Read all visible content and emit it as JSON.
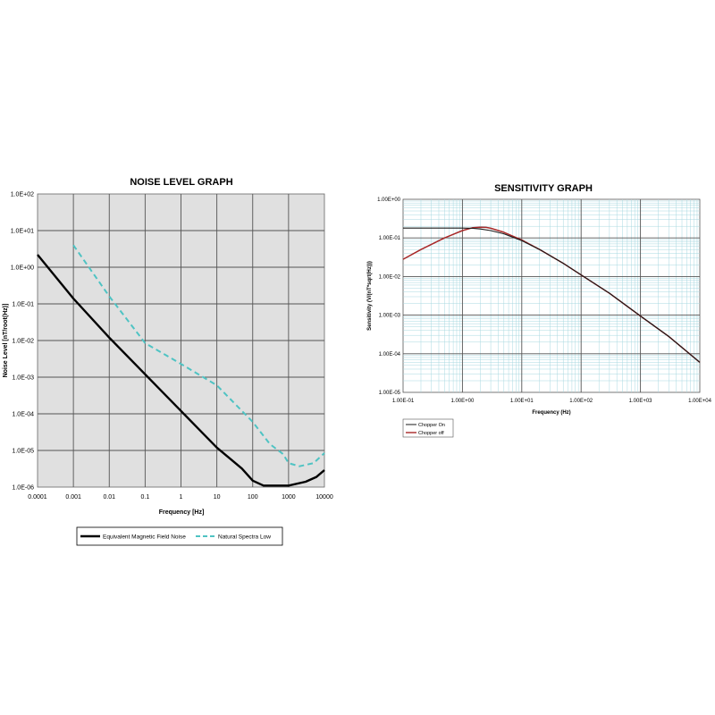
{
  "chart_data": [
    {
      "type": "line",
      "title": "NOISE LEVEL GRAPH",
      "xlabel": "Frequency [Hz]",
      "ylabel": "Noise Level [nT/root(Hz)]",
      "x_scale": "log",
      "y_scale": "log",
      "xlim": [
        0.0001,
        10000
      ],
      "ylim": [
        1e-06,
        100
      ],
      "grid": true,
      "legend_position": "bottom",
      "x_ticks": [
        "0.0001",
        "0.001",
        "0.01",
        "0.1",
        "1",
        "10",
        "100",
        "1000",
        "10000"
      ],
      "y_ticks": [
        "1.0E-06",
        "1.0E-05",
        "1.0E-04",
        "1.0E-03",
        "1.0E-02",
        "1.0E-01",
        "1.0E+00",
        "1.0E+01",
        "1.0E+02"
      ],
      "colors": {
        "plot_background": "#e0e0e0",
        "series_1": "#000000",
        "series_2": "#4fc3c3"
      },
      "series": [
        {
          "name": "Equivalent Magnetic Field Noise",
          "style": "solid",
          "x": [
            0.0001,
            0.001,
            0.01,
            0.1,
            1,
            10,
            50,
            100,
            200,
            500,
            1000,
            3000,
            6000,
            10000
          ],
          "y": [
            2.2,
            0.14,
            0.012,
            0.0012,
            0.00012,
            1.2e-05,
            3.2e-06,
            1.5e-06,
            1.1e-06,
            1.1e-06,
            1.1e-06,
            1.4e-06,
            1.9e-06,
            2.9e-06
          ]
        },
        {
          "name": "Natural Spectra Low",
          "style": "dashed",
          "x": [
            0.001,
            0.01,
            0.1,
            1,
            10,
            100,
            300,
            700,
            1000,
            2000,
            5000,
            10000
          ],
          "y": [
            4.0,
            0.16,
            0.0085,
            0.0023,
            0.0006,
            6e-05,
            1.5e-05,
            8e-06,
            4.5e-06,
            3.7e-06,
            4.5e-06,
            8.5e-06
          ]
        }
      ]
    },
    {
      "type": "line",
      "title": "SENSITIVITY GRAPH",
      "xlabel": "Frequency (Hz)",
      "ylabel": "Sensitivity (V/(nT*sqrt(Hz)))",
      "x_scale": "log",
      "y_scale": "log",
      "xlim": [
        0.1,
        10000
      ],
      "ylim": [
        1e-05,
        1
      ],
      "grid": true,
      "legend_position": "bottom-left",
      "x_ticks": [
        "1.00E-01",
        "1.00E+00",
        "1.00E+01",
        "1.00E+02",
        "1.00E+03",
        "1.00E+04"
      ],
      "y_ticks": [
        "1.00E-05",
        "1.00E-04",
        "1.00E-03",
        "1.00E-02",
        "1.00E-01",
        "1.00E+00"
      ],
      "colors": {
        "minor_grid": "#a8d8e0",
        "major_grid": "#555555",
        "series_1": "#1a1a1a",
        "series_2": "#a82828"
      },
      "series": [
        {
          "name": "Chopper On",
          "x": [
            0.1,
            0.3,
            0.6,
            1,
            1.5,
            2,
            3,
            5,
            10,
            20,
            50,
            100,
            300,
            1000,
            3000,
            10000
          ],
          "y": [
            0.18,
            0.18,
            0.18,
            0.18,
            0.178,
            0.17,
            0.155,
            0.128,
            0.085,
            0.05,
            0.022,
            0.011,
            0.0037,
            0.00095,
            0.00028,
            6e-05
          ]
        },
        {
          "name": "Chopper off",
          "x": [
            0.1,
            0.2,
            0.5,
            1,
            1.5,
            2,
            2.5,
            3,
            5,
            10,
            20,
            50,
            100,
            300,
            1000,
            3000,
            10000
          ],
          "y": [
            0.028,
            0.05,
            0.1,
            0.155,
            0.185,
            0.19,
            0.188,
            0.178,
            0.14,
            0.088,
            0.05,
            0.022,
            0.011,
            0.0037,
            0.00095,
            0.00028,
            6e-05
          ]
        }
      ]
    }
  ]
}
